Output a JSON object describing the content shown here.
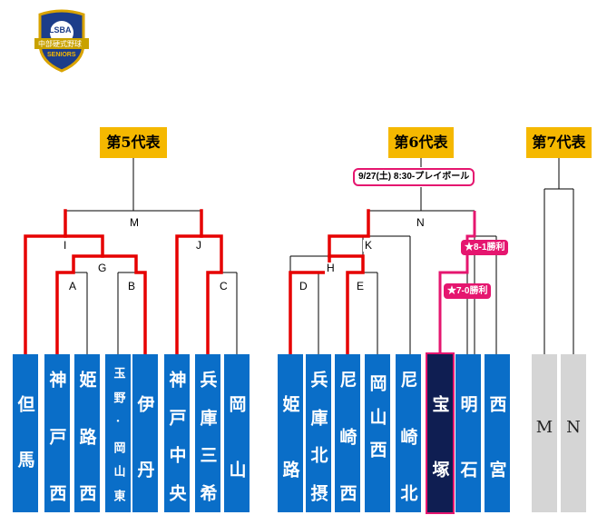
{
  "logo": {
    "top_text": "LSBA",
    "band_text": "中部硬式野球",
    "bottom_text": "SENIORS"
  },
  "brackets": [
    {
      "title": "第5代表",
      "labels": [
        "M",
        "I",
        "J",
        "G",
        "A",
        "B",
        "C"
      ],
      "teams": [
        [
          "但",
          "馬"
        ],
        [
          "神",
          "戸",
          "西"
        ],
        [
          "姫",
          "路",
          "西"
        ],
        [
          "玉",
          "野",
          "·",
          "岡",
          "山",
          "東"
        ],
        [
          "伊",
          "丹"
        ],
        [
          "神",
          "戸",
          "中",
          "央"
        ],
        [
          "兵",
          "庫",
          "三",
          "希"
        ],
        [
          "岡",
          "山"
        ]
      ]
    },
    {
      "title": "第6代表",
      "schedule": "9/27(土) 8:30-プレイボール",
      "labels": [
        "N",
        "K",
        "H",
        "D",
        "E"
      ],
      "results": [
        "★8-1勝利",
        "★7-0勝利"
      ],
      "teams": [
        [
          "姫",
          "路"
        ],
        [
          "兵",
          "庫",
          "北",
          "摂"
        ],
        [
          "尼",
          "崎",
          "西"
        ],
        [
          "岡",
          "山",
          "西"
        ],
        [
          "尼",
          "崎",
          "北"
        ],
        [
          "宝",
          "塚"
        ],
        [
          "明",
          "石"
        ],
        [
          "西",
          "宮"
        ]
      ]
    },
    {
      "title": "第7代表",
      "teams": [
        "M",
        "N"
      ]
    }
  ],
  "colors": {
    "team_blue": "#0a6ec8",
    "team_dark": "#0f1e52",
    "win_red": "#e5166f",
    "advance_red": "#e60000",
    "title_gold": "#f5b800",
    "placeholder_gray": "#d5d5d5"
  }
}
